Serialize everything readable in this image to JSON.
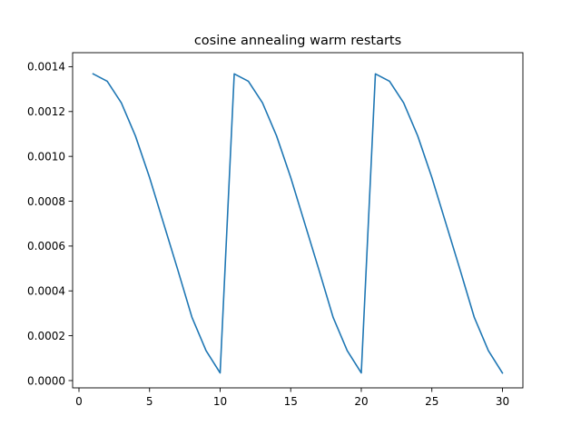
{
  "chart_data": {
    "type": "line",
    "title": "cosine annealing warm restarts",
    "xlabel": "",
    "ylabel": "",
    "xlim": [
      -0.45,
      31.45
    ],
    "ylim": [
      -3.25e-05,
      0.0014625
    ],
    "xticks": [
      0,
      5,
      10,
      15,
      20,
      25,
      30
    ],
    "xtick_labels": [
      "0",
      "5",
      "10",
      "15",
      "20",
      "25",
      "30"
    ],
    "yticks": [
      0.0,
      0.0002,
      0.0004,
      0.0006,
      0.0008,
      0.001,
      0.0012,
      0.0014
    ],
    "ytick_labels": [
      "0.0000",
      "0.0002",
      "0.0004",
      "0.0006",
      "0.0008",
      "0.0010",
      "0.0012",
      "0.0014"
    ],
    "grid": false,
    "series": [
      {
        "color": "#1f77b4",
        "x": [
          1,
          2,
          3,
          4,
          5,
          6,
          7,
          8,
          9,
          10,
          11,
          12,
          13,
          14,
          15,
          16,
          17,
          18,
          19,
          20,
          21,
          22,
          23,
          24,
          25,
          26,
          27,
          28,
          29,
          30
        ],
        "y": [
          0.001368,
          0.001335,
          0.001239,
          0.001091,
          0.000906,
          0.0007,
          0.000494,
          0.000283,
          0.000134,
          3.4e-05,
          0.001368,
          0.001335,
          0.001239,
          0.001091,
          0.000906,
          0.0007,
          0.000494,
          0.000283,
          0.000134,
          3.4e-05,
          0.001368,
          0.001335,
          0.001239,
          0.001091,
          0.000906,
          0.0007,
          0.000494,
          0.000283,
          0.000134,
          3.4e-05
        ]
      }
    ]
  }
}
